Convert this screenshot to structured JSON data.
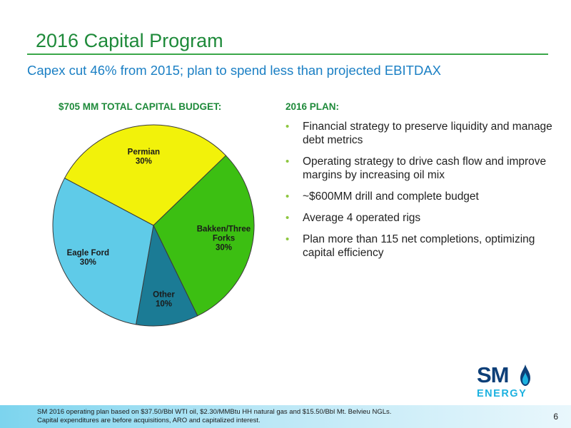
{
  "slide": {
    "title": "2016 Capital Program",
    "subtitle": "Capex cut 46% from 2015; plan to spend less than projected EBITDAX",
    "chart_heading_amount": "$705",
    "chart_heading_rest": " MM TOTAL CAPITAL BUDGET:",
    "plan_heading": "2016 PLAN:",
    "bullets": [
      "Financial strategy to preserve liquidity and manage debt metrics",
      "Operating strategy to drive cash flow and improve margins by increasing oil mix",
      "~$600MM drill and complete budget",
      "Average 4 operated rigs",
      "Plan more than 115 net completions, optimizing capital efficiency"
    ],
    "bullet_glyph": "•",
    "footnote_line1": "SM 2016 operating plan based on $37.50/Bbl WTI oil, $2.30/MMBtu HH natural gas and $15.50/Bbl Mt. Belvieu NGLs.",
    "footnote_line2": "Capital expenditures are before acquisitions, ARO and capitalized interest.",
    "page_number": "6",
    "logo_text": "SM",
    "logo_subtext": "ENERGY"
  },
  "chart_data": {
    "type": "pie",
    "title": "",
    "slices": [
      {
        "label": "Permian",
        "lines": [
          "Permian"
        ],
        "pct_text": "30%",
        "value": 30,
        "color": "#f2f20a"
      },
      {
        "label": "Bakken/Three Forks",
        "lines": [
          "Bakken/Three",
          "Forks"
        ],
        "pct_text": "30%",
        "value": 30,
        "color": "#3cbf12"
      },
      {
        "label": "Other",
        "lines": [
          "Other"
        ],
        "pct_text": "10%",
        "value": 10,
        "color": "#1b7b95"
      },
      {
        "label": "Eagle Ford",
        "lines": [
          "Eagle Ford"
        ],
        "pct_text": "30%",
        "value": 30,
        "color": "#5fcbe8"
      }
    ],
    "start_angle_deg": -62,
    "direction": "clockwise"
  },
  "colors": {
    "title": "#1e8a3a",
    "subtitle": "#1a7fc4",
    "bullet": "#8dc63f",
    "logo_dark": "#0d3f78",
    "logo_light": "#1db2e0"
  }
}
